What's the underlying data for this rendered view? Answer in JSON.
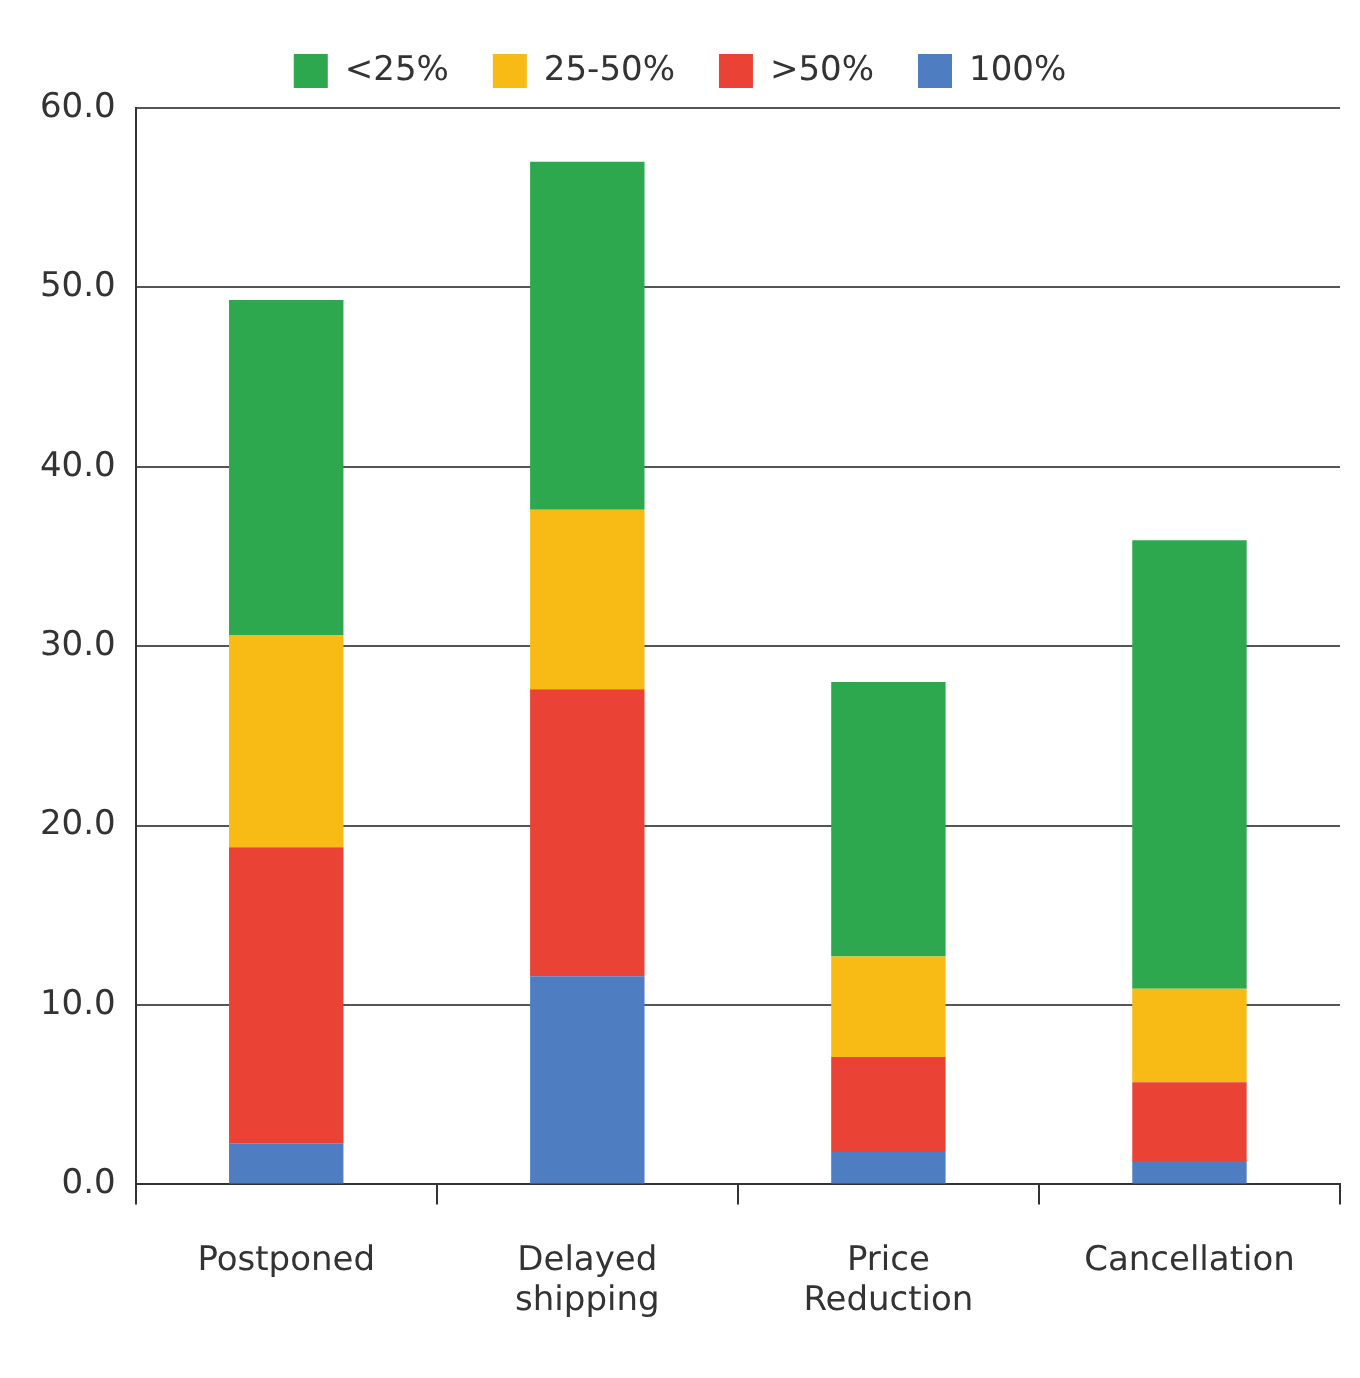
{
  "chart_data": {
    "type": "bar",
    "stacked": true,
    "categories": [
      "Postponed",
      "Delayed shipping",
      "Price Reduction",
      "Cancellation"
    ],
    "series": [
      {
        "name": "100%",
        "color": "#4f7dc1",
        "values": [
          2.3,
          11.6,
          1.8,
          1.3
        ]
      },
      {
        "name": ">50%",
        "color": "#ea4335",
        "values": [
          16.5,
          16.0,
          5.3,
          4.4
        ]
      },
      {
        "name": "25-50%",
        "color": "#f8bb15",
        "values": [
          11.8,
          10.0,
          5.6,
          5.2
        ]
      },
      {
        "name": "<25%",
        "color": "#2ea84f",
        "values": [
          18.7,
          19.4,
          15.3,
          25.0
        ]
      }
    ],
    "ylim": [
      0,
      60
    ],
    "yticks": [
      {
        "value": 0,
        "label": "0.0"
      },
      {
        "value": 10,
        "label": "10.0"
      },
      {
        "value": 20,
        "label": "20.0"
      },
      {
        "value": 30,
        "label": "30.0"
      },
      {
        "value": 40,
        "label": "40.0"
      },
      {
        "value": 50,
        "label": "50.0"
      },
      {
        "value": 60,
        "label": "60.0"
      }
    ],
    "grid": "y",
    "legend": "top"
  }
}
